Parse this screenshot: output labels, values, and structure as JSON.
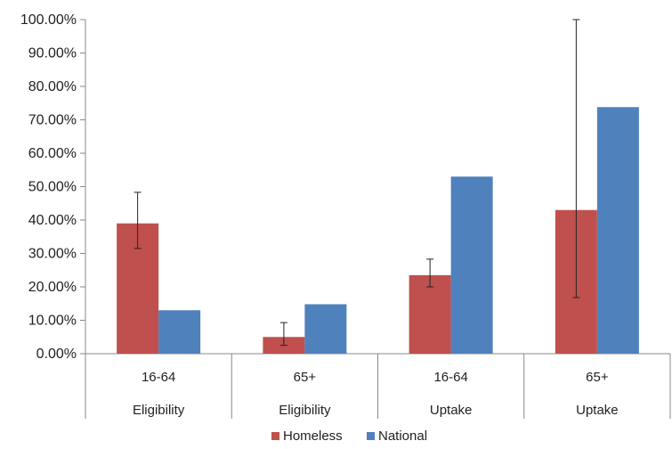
{
  "chart_data": {
    "type": "bar",
    "categories": [
      {
        "sub": "16-64",
        "group": "Eligibility"
      },
      {
        "sub": "65+",
        "group": "Eligibility"
      },
      {
        "sub": "16-64",
        "group": "Uptake"
      },
      {
        "sub": "65+",
        "group": "Uptake"
      }
    ],
    "series": [
      {
        "name": "Homeless",
        "color": "#C0504D",
        "values": [
          0.39,
          0.05,
          0.235,
          0.43
        ],
        "error_low": [
          0.315,
          0.025,
          0.2,
          0.168
        ],
        "error_high": [
          0.483,
          0.093,
          0.283,
          1.0
        ]
      },
      {
        "name": "National",
        "color": "#4F81BD",
        "values": [
          0.13,
          0.148,
          0.53,
          0.738
        ]
      }
    ],
    "ylim": [
      0,
      1
    ],
    "yticks": [
      0,
      0.1,
      0.2,
      0.3,
      0.4,
      0.5,
      0.6,
      0.7,
      0.8,
      0.9,
      1.0
    ],
    "ytick_labels": [
      "0.00%",
      "10.00%",
      "20.00%",
      "30.00%",
      "40.00%",
      "50.00%",
      "60.00%",
      "70.00%",
      "80.00%",
      "90.00%",
      "100.00%"
    ],
    "grid": false,
    "legend": "bottom",
    "title": "",
    "xlabel": "",
    "ylabel": ""
  }
}
